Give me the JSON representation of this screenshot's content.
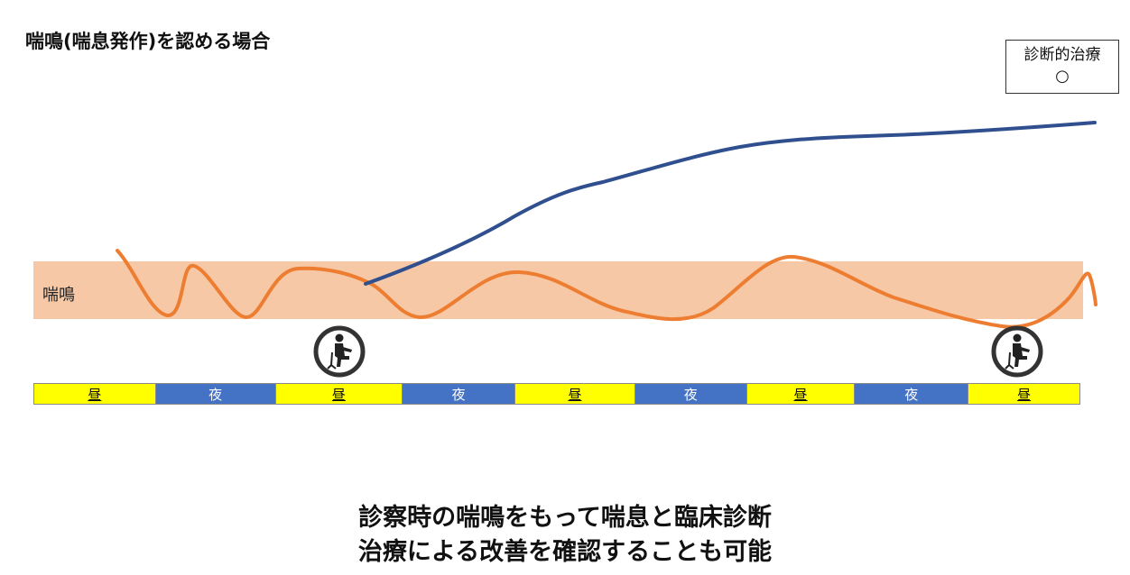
{
  "title": "喘鳴(喘息発作)を認める場合",
  "diagnostic_box": {
    "label": "診断的治療",
    "mark": "○"
  },
  "band": {
    "label": "喘鳴",
    "color": "#f7c8a6"
  },
  "colors": {
    "symptom_line": "#ed7d31",
    "treatment_line": "#2f4f8f",
    "day": "#ffff00",
    "night": "#4472c4"
  },
  "timeline": [
    {
      "label": "昼",
      "type": "day"
    },
    {
      "label": "夜",
      "type": "night"
    },
    {
      "label": "昼",
      "type": "day"
    },
    {
      "label": "夜",
      "type": "night"
    },
    {
      "label": "昼",
      "type": "day"
    },
    {
      "label": "夜",
      "type": "night"
    },
    {
      "label": "昼",
      "type": "day"
    },
    {
      "label": "夜",
      "type": "night"
    },
    {
      "label": "昼",
      "type": "day"
    }
  ],
  "visit_icons": [
    {
      "icon": "doctor-visit-icon"
    },
    {
      "icon": "doctor-visit-icon"
    }
  ],
  "conclusion": [
    "診察時の喘鳴をもって喘息と臨床診断",
    "治療による改善を確認することも可能"
  ]
}
